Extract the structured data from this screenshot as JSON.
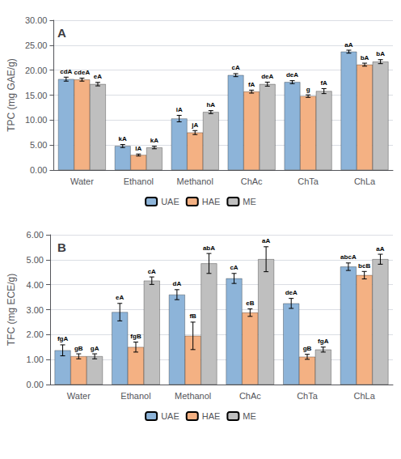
{
  "chart_data": [
    {
      "type": "bar",
      "title": "A",
      "ylabel": "TPC (mg GAE/g)",
      "categories": [
        "Water",
        "Ethanol",
        "Methanol",
        "ChAc",
        "ChTa",
        "ChLa"
      ],
      "series": [
        {
          "name": "UAE",
          "color": "#8db4d9",
          "values": [
            18.2,
            4.8,
            10.3,
            19.0,
            17.6,
            23.7
          ],
          "errors": [
            0.4,
            0.3,
            0.65,
            0.3,
            0.3,
            0.3
          ],
          "annotations": [
            "cdA",
            "kA",
            "iA",
            "cA",
            "deA",
            "aA"
          ]
        },
        {
          "name": "HAE",
          "color": "#f4b183",
          "values": [
            18.1,
            3.0,
            7.5,
            15.7,
            14.8,
            21.1
          ],
          "errors": [
            0.3,
            0.2,
            0.4,
            0.3,
            0.25,
            0.3
          ],
          "annotations": [
            "cdeA",
            "lA",
            "jA",
            "fA",
            "g",
            "bA"
          ]
        },
        {
          "name": "ME",
          "color": "#bfbfbf",
          "values": [
            17.2,
            4.5,
            11.6,
            17.2,
            15.8,
            21.7
          ],
          "errors": [
            0.35,
            0.25,
            0.3,
            0.4,
            0.5,
            0.4
          ],
          "annotations": [
            "eA",
            "kA",
            "hA",
            "deA",
            "fA",
            "bA"
          ]
        }
      ],
      "ylim": [
        0,
        30
      ],
      "yticks": [
        {
          "value": 0,
          "label": "0.00"
        },
        {
          "value": 5,
          "label": "5.00"
        },
        {
          "value": 10,
          "label": "10.00"
        },
        {
          "value": 15,
          "label": "15.00"
        },
        {
          "value": 20,
          "label": "20.00"
        },
        {
          "value": 25,
          "label": "25.00"
        },
        {
          "value": 30,
          "label": "30.00"
        }
      ],
      "grid": true,
      "legend": "bottom"
    },
    {
      "type": "bar",
      "title": "B",
      "ylabel": "TFC (mg ECE/g)",
      "categories": [
        "Water",
        "Ethanol",
        "Methanol",
        "ChAc",
        "ChTa",
        "ChLa"
      ],
      "series": [
        {
          "name": "UAE",
          "color": "#8db4d9",
          "values": [
            1.37,
            2.9,
            3.6,
            4.25,
            3.25,
            4.72
          ],
          "errors": [
            0.22,
            0.35,
            0.2,
            0.2,
            0.2,
            0.15
          ],
          "annotations": [
            "fgA",
            "eA",
            "dA",
            "cA",
            "deA",
            "abcA"
          ]
        },
        {
          "name": "HAE",
          "color": "#f4b183",
          "values": [
            1.13,
            1.5,
            1.95,
            2.88,
            1.11,
            4.38
          ],
          "errors": [
            0.1,
            0.2,
            0.55,
            0.15,
            0.1,
            0.15
          ],
          "annotations": [
            "gB",
            "fgB",
            "fB",
            "eB",
            "gB",
            "bcB"
          ]
        },
        {
          "name": "ME",
          "color": "#bfbfbf",
          "values": [
            1.13,
            4.16,
            4.85,
            5.02,
            1.4,
            5.02
          ],
          "errors": [
            0.1,
            0.15,
            0.4,
            0.5,
            0.1,
            0.2
          ],
          "annotations": [
            "gA",
            "cA",
            "abA",
            "aA",
            "fgA",
            "aA"
          ]
        }
      ],
      "ylim": [
        0,
        6.0
      ],
      "yticks": [
        {
          "value": 0,
          "label": "0.00"
        },
        {
          "value": 1,
          "label": "1.00"
        },
        {
          "value": 2,
          "label": "2.00"
        },
        {
          "value": 3,
          "label": "3.00"
        },
        {
          "value": 4,
          "label": "4.00"
        },
        {
          "value": 5,
          "label": "5.00"
        },
        {
          "value": 6,
          "label": "6.00"
        }
      ],
      "grid": true,
      "legend": "bottom"
    }
  ]
}
